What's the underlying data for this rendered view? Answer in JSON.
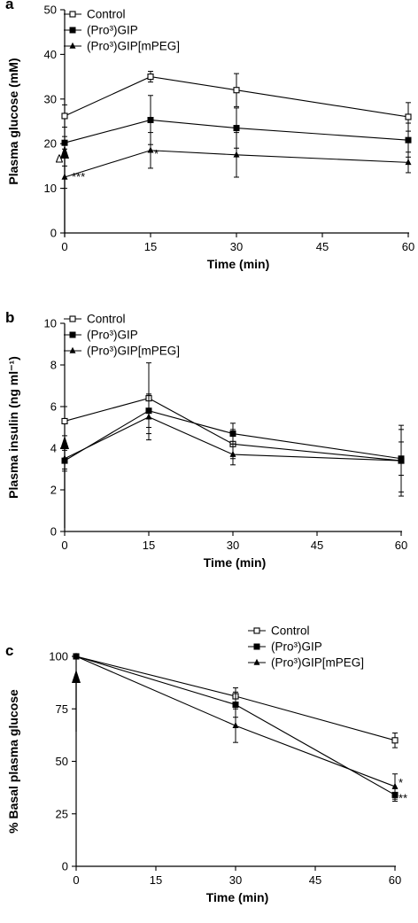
{
  "chart_data": [
    {
      "panel_label": "a",
      "type": "line",
      "ylabel": "Plasma glucose (mM)",
      "xlabel": "Time (min)",
      "xlim": [
        0,
        60
      ],
      "ylim": [
        0,
        50
      ],
      "xticks": [
        "0",
        "15",
        "30",
        "45",
        "60"
      ],
      "yticks": [
        "0",
        "10",
        "20",
        "30",
        "40",
        "50"
      ],
      "legend_position": "top-left",
      "x": [
        0,
        15,
        30,
        60
      ],
      "series": [
        {
          "name": "Control",
          "marker": "open-square",
          "values": [
            26.2,
            35.0,
            32.0,
            26.0
          ],
          "errors": [
            2.5,
            1.2,
            3.7,
            3.2
          ]
        },
        {
          "name": "(Pro³)GIP",
          "marker": "filled-square",
          "values": [
            20.2,
            25.3,
            23.5,
            20.8
          ],
          "errors": [
            1.4,
            5.5,
            4.5,
            3.8
          ]
        },
        {
          "name": "(Pro³)GIP[mPEG]",
          "marker": "filled-triangle",
          "values": [
            12.5,
            18.5,
            17.5,
            15.8
          ],
          "errors": [
            2.5,
            4.0,
            5.0,
            2.3
          ]
        }
      ],
      "annotations": [
        {
          "text": "Δ",
          "x": 0,
          "y": 17.0
        },
        {
          "text": "***",
          "x": 0,
          "y": 12.5
        },
        {
          "text": "*",
          "x": 15,
          "y": 18.5
        }
      ],
      "arrow_at_x": 0
    },
    {
      "panel_label": "b",
      "type": "line",
      "ylabel": "Plasma insulin (ng ml⁻¹)",
      "xlabel": "Time (min)",
      "xlim": [
        0,
        60
      ],
      "ylim": [
        0,
        10
      ],
      "xticks": [
        "0",
        "15",
        "30",
        "45",
        "60"
      ],
      "yticks": [
        "0",
        "2",
        "4",
        "6",
        "8",
        "10"
      ],
      "legend_position": "top-left",
      "x": [
        0,
        15,
        30,
        60
      ],
      "series": [
        {
          "name": "Control",
          "marker": "open-square",
          "values": [
            5.3,
            6.4,
            4.2,
            3.4
          ],
          "errors": [
            0.7,
            1.7,
            0.7,
            1.7
          ]
        },
        {
          "name": "(Pro³)GIP",
          "marker": "filled-square",
          "values": [
            3.4,
            5.8,
            4.7,
            3.5
          ],
          "errors": [
            0.5,
            0.8,
            0.5,
            0.8
          ]
        },
        {
          "name": "(Pro³)GIP[mPEG]",
          "marker": "filled-triangle",
          "values": [
            3.5,
            5.5,
            3.7,
            3.4
          ],
          "errors": [
            0.5,
            1.1,
            0.5,
            1.5
          ]
        }
      ],
      "annotations": [],
      "arrow_at_x": 0
    },
    {
      "panel_label": "c",
      "type": "line",
      "ylabel": "% Basal plasma glucose",
      "xlabel": "Time (min)",
      "xlim": [
        0,
        60
      ],
      "ylim": [
        0,
        100
      ],
      "xticks": [
        "0",
        "15",
        "30",
        "45",
        "60"
      ],
      "yticks": [
        "0",
        "25",
        "50",
        "75",
        "100"
      ],
      "legend_position": "top-right",
      "x": [
        0,
        30,
        60
      ],
      "series": [
        {
          "name": "Control",
          "marker": "open-square",
          "values": [
            100,
            81,
            60
          ],
          "errors": [
            0,
            4,
            3.5
          ]
        },
        {
          "name": "(Pro³)GIP",
          "marker": "filled-square",
          "values": [
            100,
            77,
            34
          ],
          "errors": [
            0,
            6,
            3
          ]
        },
        {
          "name": "(Pro³)GIP[mPEG]",
          "marker": "filled-triangle",
          "values": [
            100,
            67,
            38
          ],
          "errors": [
            0,
            8,
            6
          ]
        }
      ],
      "annotations": [
        {
          "text": "*",
          "x": 60,
          "y": 38
        },
        {
          "text": "**",
          "x": 60,
          "y": 34
        }
      ],
      "arrow_at_x": 0
    }
  ]
}
